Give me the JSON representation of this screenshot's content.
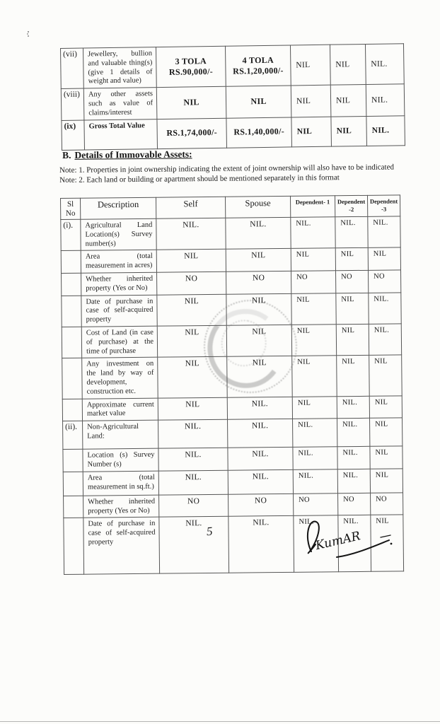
{
  "scan": {
    "page_number": "5",
    "signature_text": "KumAR"
  },
  "movable_assets_table": {
    "rows": [
      {
        "no": "(vii)",
        "desc": "Jewellery, bullion and valuable thing(s) (give 1 details of weight and value)",
        "self": "3 TOLA\nRS.90,000/-",
        "spouse": "4 TOLA\nRS.1,20,000/-",
        "dep1": "NIL",
        "dep2": "NIL",
        "dep3": "NIL."
      },
      {
        "no": "(viii)",
        "desc": "Any other assets such as value of claims/interest",
        "self": "NIL",
        "spouse": "NIL",
        "dep1": "NIL",
        "dep2": "NIL",
        "dep3": "NIL."
      },
      {
        "no": "(ix)",
        "desc": "Gross Total Value",
        "self": "RS.1,74,000/-",
        "spouse": "RS.1,40,000/-",
        "dep1": "NIL",
        "dep2": "NIL",
        "dep3": "NIL."
      }
    ]
  },
  "section_b": {
    "prefix": "B.",
    "heading": "Details of Immovable Assets:",
    "note1": "Note: 1. Properties in joint ownership indicating the extent of joint ownership will also have to be indicated",
    "note2": "Note: 2. Each land or building or apartment should be mentioned separately in this format"
  },
  "immovable_table": {
    "headers": [
      "Sl No",
      "Description",
      "Self",
      "Spouse",
      "Dependent- 1",
      "Dependent -2",
      "Dependent -3"
    ],
    "rows": [
      {
        "no": "(i).",
        "desc": "Agricultural Land Location(s) Survey number(s)",
        "self": "NIL.",
        "spouse": "NIL.",
        "dep1": "NIL.",
        "dep2": "NIL.",
        "dep3": "NIL."
      },
      {
        "no": "",
        "desc": "Area (total measurement in acres)",
        "self": "NIL",
        "spouse": "NIL",
        "dep1": "NIL",
        "dep2": "NIL",
        "dep3": "NIL"
      },
      {
        "no": "",
        "desc": "Whether inherited property (Yes or No)",
        "self": "NO",
        "spouse": "NO",
        "dep1": "NO",
        "dep2": "NO",
        "dep3": "NO"
      },
      {
        "no": "",
        "desc": "Date of purchase in case of self-acquired property",
        "self": "NIL",
        "spouse": "NIL",
        "dep1": "NIL",
        "dep2": "NIL",
        "dep3": "NIL."
      },
      {
        "no": "",
        "desc": "Cost of Land (in case of purchase) at the time of purchase",
        "self": "NIL",
        "spouse": "NIL",
        "dep1": "NIL",
        "dep2": "NIL",
        "dep3": "NIL."
      },
      {
        "no": "",
        "desc": "Any investment on the land by way of development, construction etc.",
        "self": "NIL",
        "spouse": "NIL",
        "dep1": "NIL",
        "dep2": "NIL",
        "dep3": "NIL"
      },
      {
        "no": "",
        "desc": "Approximate current market value",
        "self": "NIL",
        "spouse": "NIL.",
        "dep1": "NIL",
        "dep2": "NIL.",
        "dep3": "NIL"
      },
      {
        "no": "(ii).",
        "desc": "Non-Agricultural Land:",
        "self": "NIL.",
        "spouse": "NIL.",
        "dep1": "NIL.",
        "dep2": "NIL.",
        "dep3": "NIL"
      },
      {
        "no": "",
        "desc": "Location (s) Survey Number (s)",
        "self": "NIL.",
        "spouse": "NIL.",
        "dep1": "NIL.",
        "dep2": "NIL.",
        "dep3": "NIL"
      },
      {
        "no": "",
        "desc": "Area (total measurement in sq.ft.)",
        "self": "NIL.",
        "spouse": "NIL.",
        "dep1": "NIL.",
        "dep2": "NIL.",
        "dep3": "NIL"
      },
      {
        "no": "",
        "desc": "Whether inherited property (Yes or No)",
        "self": "NO",
        "spouse": "NO",
        "dep1": "NO",
        "dep2": "NO",
        "dep3": "NO"
      },
      {
        "no": "",
        "desc": "Date of purchase in case of self-acquired property",
        "self": "NIL.",
        "spouse": "NIL.",
        "dep1": "NIL.",
        "dep2": "NIL.",
        "dep3": "NIL"
      }
    ]
  }
}
